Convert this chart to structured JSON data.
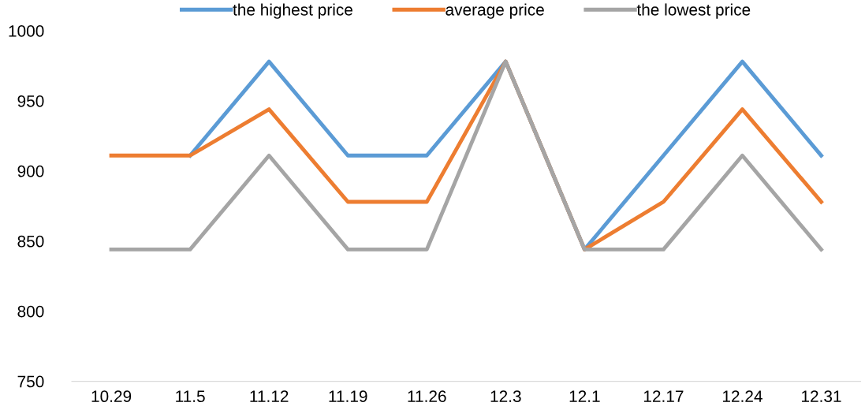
{
  "chart_data": {
    "type": "line",
    "categories": [
      "10.29",
      "11.5",
      "11.12",
      "11.19",
      "11.26",
      "12.3",
      "12.1",
      "12.17",
      "12.24",
      "12.31"
    ],
    "series": [
      {
        "name": "the highest price",
        "color": "#5b9bd5",
        "values": [
          null,
          911,
          978,
          911,
          911,
          978,
          844,
          911,
          978,
          911
        ]
      },
      {
        "name": "average price",
        "color": "#ed7d31",
        "values": [
          911,
          911,
          944,
          878,
          878,
          978,
          844,
          878,
          944,
          878
        ]
      },
      {
        "name": "the lowest price",
        "color": "#a5a5a5",
        "values": [
          844,
          844,
          911,
          844,
          844,
          978,
          844,
          844,
          911,
          844
        ]
      }
    ],
    "ylim": [
      750,
      1000
    ],
    "yticks": [
      750,
      800,
      850,
      900,
      950,
      1000
    ],
    "grid": false,
    "legend": "top",
    "marker": "none",
    "line_style": "solid"
  }
}
